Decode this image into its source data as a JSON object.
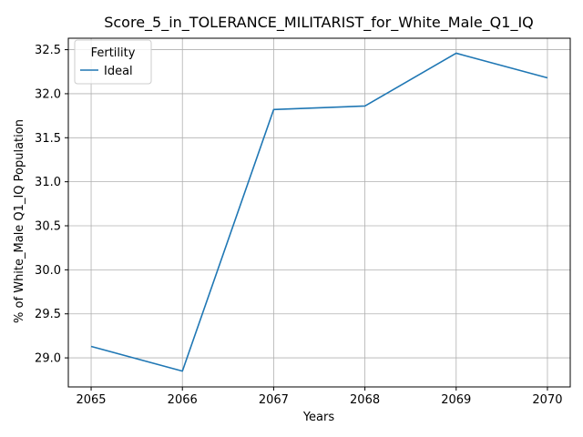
{
  "chart_data": {
    "type": "line",
    "title": "Score_5_in_TOLERANCE_MILITARIST_for_White_Male_Q1_IQ",
    "xlabel": "Years",
    "ylabel": "% of White_Male Q1_IQ Population",
    "x": [
      2065,
      2066,
      2067,
      2068,
      2069,
      2070
    ],
    "xticks": [
      "2065",
      "2066",
      "2067",
      "2068",
      "2069",
      "2070"
    ],
    "yticks": [
      "29.0",
      "29.5",
      "30.0",
      "30.5",
      "31.0",
      "31.5",
      "32.0",
      "32.5"
    ],
    "ylim": [
      28.67,
      32.63
    ],
    "xlim": [
      2064.75,
      2070.25
    ],
    "grid": true,
    "legend": {
      "title": "Fertility",
      "placement": "top-left"
    },
    "series": [
      {
        "name": "Ideal",
        "color": "#1f77b4",
        "values": [
          29.13,
          28.85,
          31.82,
          31.86,
          32.46,
          32.18
        ]
      }
    ]
  }
}
